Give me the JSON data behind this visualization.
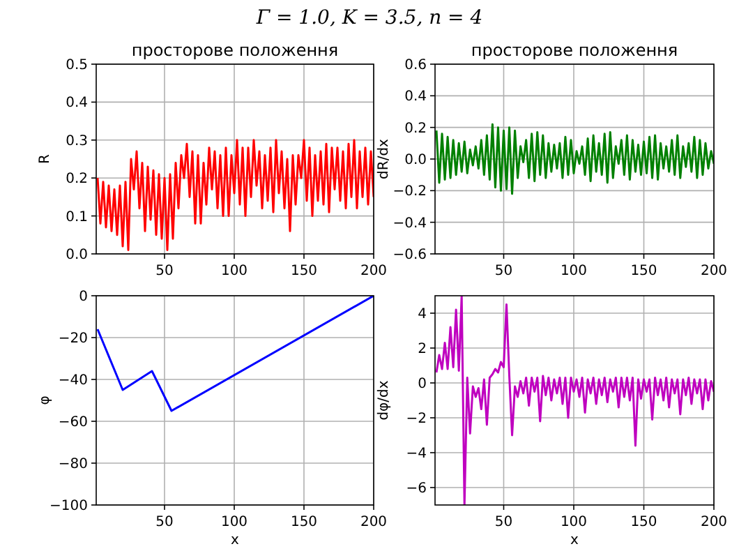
{
  "chart_data": [
    {
      "type": "line",
      "title": "просторове положення",
      "ylabel": "R",
      "annotations": [
        "Γ = 1.0, K = 3.5, n = 4"
      ],
      "xlim": [
        1,
        200
      ],
      "xticks": [
        50,
        100,
        150,
        200
      ],
      "ylim": [
        0,
        0.5
      ],
      "yticks": [
        {
          "value": 0,
          "label": "0.0"
        },
        0.1,
        0.2,
        0.3,
        0.4,
        0.5
      ],
      "grid": true,
      "x": [
        2,
        4,
        6,
        8,
        10,
        12,
        14,
        16,
        18,
        20,
        22,
        24,
        26,
        28,
        30,
        32,
        34,
        36,
        38,
        40,
        42,
        44,
        46,
        48,
        50,
        52,
        54,
        56,
        58,
        60,
        62,
        64,
        66,
        68,
        70,
        72,
        74,
        76,
        78,
        80,
        82,
        84,
        86,
        88,
        90,
        92,
        94,
        96,
        98,
        100,
        102,
        104,
        106,
        108,
        110,
        112,
        114,
        116,
        118,
        120,
        122,
        124,
        126,
        128,
        130,
        132,
        134,
        136,
        138,
        140,
        142,
        144,
        146,
        148,
        150,
        152,
        154,
        156,
        158,
        160,
        162,
        164,
        166,
        168,
        170,
        172,
        174,
        176,
        178,
        180,
        182,
        184,
        186,
        188,
        190,
        192,
        194,
        196,
        198,
        200
      ],
      "series": [
        {
          "color": "#ff0000",
          "values": [
            0.2,
            0.08,
            0.19,
            0.07,
            0.18,
            0.06,
            0.17,
            0.05,
            0.18,
            0.02,
            0.19,
            0.01,
            0.25,
            0.17,
            0.27,
            0.12,
            0.24,
            0.06,
            0.23,
            0.09,
            0.22,
            0.05,
            0.21,
            0.04,
            0.2,
            0.01,
            0.21,
            0.04,
            0.24,
            0.12,
            0.26,
            0.2,
            0.29,
            0.15,
            0.27,
            0.08,
            0.26,
            0.08,
            0.24,
            0.13,
            0.28,
            0.17,
            0.27,
            0.12,
            0.26,
            0.1,
            0.28,
            0.1,
            0.26,
            0.16,
            0.3,
            0.13,
            0.28,
            0.1,
            0.28,
            0.15,
            0.3,
            0.18,
            0.27,
            0.12,
            0.26,
            0.14,
            0.28,
            0.11,
            0.3,
            0.16,
            0.27,
            0.12,
            0.25,
            0.06,
            0.26,
            0.13,
            0.26,
            0.2,
            0.3,
            0.14,
            0.28,
            0.1,
            0.26,
            0.14,
            0.27,
            0.13,
            0.29,
            0.11,
            0.28,
            0.17,
            0.28,
            0.14,
            0.27,
            0.12,
            0.29,
            0.15,
            0.3,
            0.12,
            0.27,
            0.15,
            0.28,
            0.13,
            0.27,
            0.15
          ]
        }
      ]
    },
    {
      "type": "line",
      "title": "просторове положення",
      "ylabel": "dR/dx",
      "xlim": [
        1,
        200
      ],
      "xticks": [
        50,
        100,
        150,
        200
      ],
      "ylim": [
        -0.6,
        0.6
      ],
      "yticks": [
        -0.6,
        -0.4,
        -0.2,
        {
          "value": 0,
          "label": "0.0"
        },
        0.2,
        0.4,
        0.6
      ],
      "grid": true,
      "x": [
        2,
        4,
        6,
        8,
        10,
        12,
        14,
        16,
        18,
        20,
        22,
        24,
        26,
        28,
        30,
        32,
        34,
        36,
        38,
        40,
        42,
        44,
        46,
        48,
        50,
        52,
        54,
        56,
        58,
        60,
        62,
        64,
        66,
        68,
        70,
        72,
        74,
        76,
        78,
        80,
        82,
        84,
        86,
        88,
        90,
        92,
        94,
        96,
        98,
        100,
        102,
        104,
        106,
        108,
        110,
        112,
        114,
        116,
        118,
        120,
        122,
        124,
        126,
        128,
        130,
        132,
        134,
        136,
        138,
        140,
        142,
        144,
        146,
        148,
        150,
        152,
        154,
        156,
        158,
        160,
        162,
        164,
        166,
        168,
        170,
        172,
        174,
        176,
        178,
        180,
        182,
        184,
        186,
        188,
        190,
        192,
        194,
        196,
        198,
        200
      ],
      "series": [
        {
          "color": "#008000",
          "values": [
            0.18,
            -0.15,
            0.16,
            -0.13,
            0.14,
            -0.12,
            0.12,
            -0.1,
            0.1,
            -0.08,
            0.11,
            -0.09,
            0.06,
            -0.04,
            0.08,
            -0.06,
            0.12,
            -0.1,
            0.15,
            -0.13,
            0.22,
            -0.18,
            0.2,
            -0.2,
            0.18,
            -0.19,
            0.2,
            -0.22,
            0.18,
            -0.12,
            0.08,
            -0.02,
            0.12,
            -0.12,
            0.16,
            -0.14,
            0.17,
            -0.1,
            0.15,
            -0.12,
            0.1,
            -0.08,
            0.09,
            -0.06,
            0.1,
            -0.12,
            0.14,
            -0.1,
            0.12,
            -0.09,
            0.05,
            -0.03,
            0.08,
            -0.1,
            0.13,
            -0.14,
            0.15,
            -0.08,
            0.1,
            -0.1,
            0.16,
            -0.15,
            0.17,
            -0.12,
            0.08,
            -0.03,
            0.12,
            -0.1,
            0.15,
            -0.13,
            0.12,
            -0.08,
            0.09,
            -0.1,
            0.11,
            -0.09,
            0.14,
            -0.12,
            0.15,
            -0.13,
            0.1,
            -0.06,
            0.08,
            -0.08,
            0.12,
            -0.1,
            0.15,
            -0.12,
            0.08,
            -0.05,
            0.1,
            -0.08,
            0.14,
            -0.12,
            0.12,
            -0.1,
            0.1,
            -0.06,
            0.05,
            -0.03
          ]
        }
      ]
    },
    {
      "type": "line",
      "xlabel": "x",
      "ylabel": "φ",
      "xlim": [
        1,
        200
      ],
      "xticks": [
        50,
        100,
        150,
        200
      ],
      "ylim": [
        -100,
        0
      ],
      "yticks": [
        -100,
        -80,
        -60,
        -40,
        -20,
        0
      ],
      "grid": true,
      "x": [
        2,
        20,
        41,
        55,
        200
      ],
      "series": [
        {
          "color": "#0000ff",
          "values": [
            -16,
            -45,
            -36,
            -55,
            0
          ]
        }
      ]
    },
    {
      "type": "line",
      "xlabel": "x",
      "ylabel": "dφ/dx",
      "xlim": [
        1,
        200
      ],
      "xticks": [
        50,
        100,
        150,
        200
      ],
      "ylim": [
        -7,
        5
      ],
      "yticks": [
        -6,
        -4,
        -2,
        0,
        2,
        4
      ],
      "grid": true,
      "x": [
        2,
        4,
        6,
        8,
        10,
        12,
        14,
        16,
        18,
        20,
        22,
        24,
        26,
        28,
        30,
        32,
        34,
        36,
        38,
        40,
        42,
        44,
        46,
        48,
        50,
        52,
        54,
        56,
        58,
        60,
        62,
        64,
        66,
        68,
        70,
        72,
        74,
        76,
        78,
        80,
        82,
        84,
        86,
        88,
        90,
        92,
        94,
        96,
        98,
        100,
        102,
        104,
        106,
        108,
        110,
        112,
        114,
        116,
        118,
        120,
        122,
        124,
        126,
        128,
        130,
        132,
        134,
        136,
        138,
        140,
        142,
        144,
        146,
        148,
        150,
        152,
        154,
        156,
        158,
        160,
        162,
        164,
        166,
        168,
        170,
        172,
        174,
        176,
        178,
        180,
        182,
        184,
        186,
        188,
        190,
        192,
        194,
        196,
        198,
        200
      ],
      "series": [
        {
          "color": "#bf00bf",
          "values": [
            0.6,
            1.6,
            0.8,
            2.3,
            0.8,
            3.2,
            0.9,
            4.2,
            0.7,
            5,
            -7,
            0.3,
            -2.9,
            -0.2,
            -0.8,
            -0.3,
            -1.5,
            0.2,
            -2.4,
            0.3,
            0.5,
            0.8,
            0.6,
            1.2,
            0.9,
            4.5,
            0.4,
            -3,
            -0.2,
            -0.8,
            0.1,
            -0.6,
            0.3,
            -1.3,
            0.3,
            -0.5,
            0.3,
            -2.2,
            0.4,
            -0.7,
            0.3,
            -1.0,
            0.2,
            -0.6,
            0.3,
            -1.2,
            0.3,
            -2.0,
            0.3,
            -0.5,
            0.2,
            -0.8,
            0.3,
            -1.7,
            0.2,
            -0.6,
            0.3,
            -1.2,
            0.2,
            -0.7,
            0.3,
            -1.1,
            0.2,
            -0.5,
            0.3,
            -1.4,
            0.3,
            -0.8,
            0.3,
            -1.0,
            0.3,
            -3.6,
            0.2,
            -0.9,
            0.2,
            -0.5,
            0.2,
            -2.1,
            0.3,
            -0.7,
            0.2,
            -1.0,
            0.3,
            -1.4,
            0.2,
            -0.6,
            0.2,
            -1.8,
            0.2,
            -0.7,
            0.3,
            -1.2,
            0.2,
            -0.6,
            0.2,
            -1.5,
            0.2,
            -1.0,
            0.1,
            -0.5
          ]
        }
      ]
    }
  ]
}
